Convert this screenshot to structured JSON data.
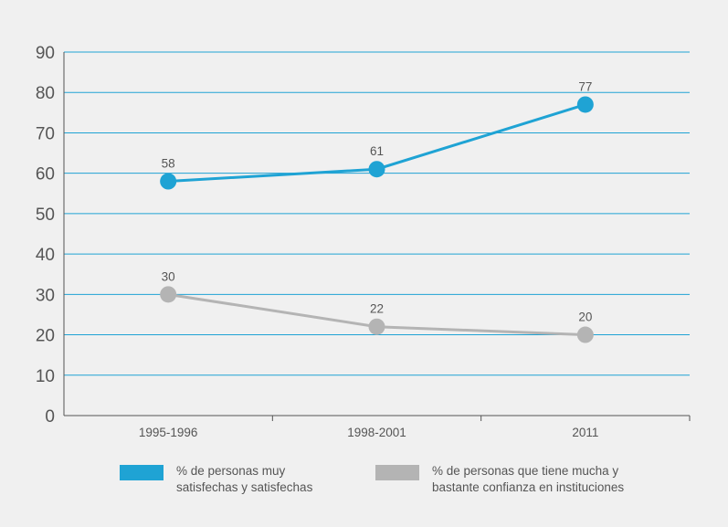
{
  "chart_data": {
    "type": "line",
    "title": "",
    "xlabel": "",
    "ylabel": "",
    "categories": [
      "1995-1996",
      "1998-2001",
      "2011"
    ],
    "ylim": [
      0,
      90
    ],
    "yticks": [
      "0",
      "10",
      "20",
      "30",
      "40",
      "50",
      "60",
      "70",
      "80",
      "90"
    ],
    "grid": true,
    "legend_position": "bottom",
    "series": [
      {
        "name": "% de personas muy\nsatisfechas y satisfechas",
        "values": [
          58,
          61,
          77
        ],
        "labels": [
          "58",
          "61",
          "77"
        ],
        "color": "#1fa3d4"
      },
      {
        "name": "% de personas que tiene mucha y\nbastante confianza en instituciones",
        "values": [
          30,
          22,
          20
        ],
        "labels": [
          "30",
          "22",
          "20"
        ],
        "color": "#b4b4b4"
      }
    ]
  },
  "colors": {
    "background": "#f0f0f0",
    "gridline": "#1fa3d4",
    "axis": "#555555",
    "text": "#555555"
  }
}
